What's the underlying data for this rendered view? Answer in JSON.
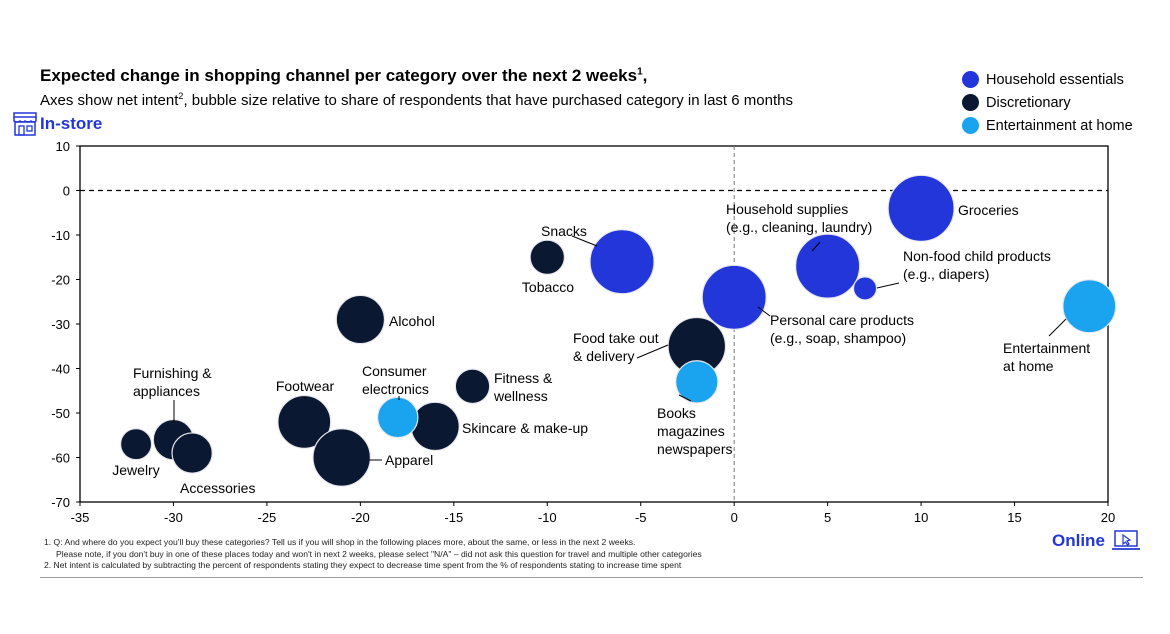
{
  "header": {
    "title": "Expected change in shopping channel per category over the next 2 weeks",
    "title_sup": "1",
    "title_suffix": ",",
    "subtitle_a": "Axes show net intent",
    "subtitle_sup": "2",
    "subtitle_b": ", bubble size relative to share of respondents that have purchased category in last 6 months"
  },
  "axis_labels": {
    "top_left": "In-store",
    "bottom_right": "Online"
  },
  "legend": [
    {
      "label": "Household essentials",
      "color": "#2336d9"
    },
    {
      "label": "Discretionary",
      "color": "#0b1831"
    },
    {
      "label": "Entertainment at home",
      "color": "#1aa3ee"
    }
  ],
  "footnotes": {
    "n1_line1": "1.  Q: And where do you expect you'll buy these categories?  Tell us if you will shop in the following places more, about the same, or less in the next 2 weeks.",
    "n1_line2": "Please note, if you don't buy in one of these places today and won't in next 2 weeks, please select \"N/A\" – did not ask this question for travel and multiple other categories",
    "n2": "2.  Net intent is calculated by subtracting the percent of respondents stating they expect to decrease time spent from the % of respondents stating to increase time spent"
  },
  "chart_data": {
    "type": "scatter",
    "xlim": [
      -35,
      20
    ],
    "ylim": [
      -70,
      10
    ],
    "xticks": [
      -35,
      -30,
      -25,
      -20,
      -15,
      -10,
      -5,
      0,
      5,
      10,
      15,
      20
    ],
    "yticks": [
      10,
      0,
      -10,
      -20,
      -30,
      -40,
      -50,
      -60,
      -70
    ],
    "reference_lines": {
      "x": 0,
      "y": 0
    },
    "points": [
      {
        "name": "Groceries",
        "group": "Household essentials",
        "x": 10,
        "y": -4,
        "size": 1.0,
        "label_lines": [
          "Groceries"
        ]
      },
      {
        "name": "Household supplies",
        "group": "Household essentials",
        "x": 5,
        "y": -17,
        "size": 0.97,
        "label_lines": [
          "Household supplies",
          "(e.g., cleaning, laundry)"
        ]
      },
      {
        "name": "Non-food child products",
        "group": "Household essentials",
        "x": 7,
        "y": -22,
        "size": 0.35,
        "label_lines": [
          "Non-food child products",
          "(e.g., diapers)"
        ]
      },
      {
        "name": "Personal care products",
        "group": "Household essentials",
        "x": 0,
        "y": -24,
        "size": 0.97,
        "label_lines": [
          "Personal care products",
          "(e.g., soap, shampoo)"
        ]
      },
      {
        "name": "Snacks",
        "group": "Household essentials",
        "x": -6,
        "y": -16,
        "size": 0.97,
        "label_lines": [
          "Snacks"
        ]
      },
      {
        "name": "Tobacco",
        "group": "Discretionary",
        "x": -10,
        "y": -15,
        "size": 0.52,
        "label_lines": [
          "Tobacco"
        ]
      },
      {
        "name": "Alcohol",
        "group": "Discretionary",
        "x": -20,
        "y": -29,
        "size": 0.73,
        "label_lines": [
          "Alcohol"
        ]
      },
      {
        "name": "Food take out & delivery",
        "group": "Discretionary",
        "x": -2,
        "y": -35,
        "size": 0.87,
        "label_lines": [
          "Food take out",
          "& delivery"
        ]
      },
      {
        "name": "Books magazines newspapers",
        "group": "Entertainment at home",
        "x": -2,
        "y": -43,
        "size": 0.64,
        "label_lines": [
          "Books",
          "magazines",
          "newspapers"
        ]
      },
      {
        "name": "Fitness & wellness",
        "group": "Discretionary",
        "x": -14,
        "y": -44,
        "size": 0.52,
        "label_lines": [
          "Fitness &",
          "wellness"
        ]
      },
      {
        "name": "Skincare & make-up",
        "group": "Discretionary",
        "x": -16,
        "y": -53,
        "size": 0.73,
        "label_lines": [
          "Skincare & make-up"
        ]
      },
      {
        "name": "Consumer electronics",
        "group": "Entertainment at home",
        "x": -18,
        "y": -51,
        "size": 0.61,
        "label_lines": [
          "Consumer",
          "electronics"
        ]
      },
      {
        "name": "Footwear",
        "group": "Discretionary",
        "x": -23,
        "y": -52,
        "size": 0.8,
        "label_lines": [
          "Footwear"
        ]
      },
      {
        "name": "Apparel",
        "group": "Discretionary",
        "x": -21,
        "y": -60,
        "size": 0.87,
        "label_lines": [
          "Apparel"
        ]
      },
      {
        "name": "Furnishing & appliances",
        "group": "Discretionary",
        "x": -30,
        "y": -56,
        "size": 0.61,
        "label_lines": [
          "Furnishing &",
          "appliances"
        ]
      },
      {
        "name": "Accessories",
        "group": "Discretionary",
        "x": -29,
        "y": -59,
        "size": 0.61,
        "label_lines": [
          "Accessories"
        ]
      },
      {
        "name": "Jewelry",
        "group": "Discretionary",
        "x": -32,
        "y": -57,
        "size": 0.47,
        "label_lines": [
          "Jewelry"
        ]
      },
      {
        "name": "Entertainment at home",
        "group": "Entertainment at home",
        "x": 19,
        "y": -26,
        "size": 0.8,
        "label_lines": [
          "Entertainment",
          "at home"
        ]
      }
    ]
  }
}
